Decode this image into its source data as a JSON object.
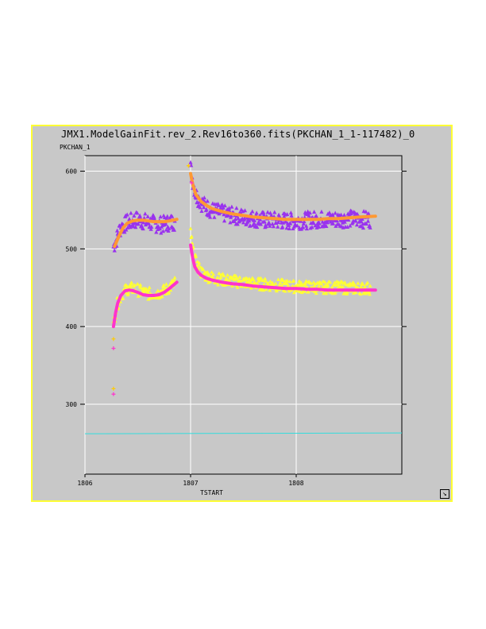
{
  "window": {
    "title": "JMX1.ModelGainFit.rev_2.Rev16to360.fits(PKCHAN_1_1-117482)_0"
  },
  "colors": {
    "background": "#c8c8c8",
    "frame": "#ffff33",
    "grid": "#ffffff",
    "triangles": "#9933ee",
    "fit_orange": "#ff9933",
    "fit_magenta": "#ff33cc",
    "points_yellow": "#ffff33",
    "baseline": "#33dddd"
  },
  "icons": {
    "resize": "resize-corner-icon"
  },
  "chart_data": {
    "type": "scatter",
    "xlabel": "TSTART",
    "ylabel": "PKCHAN_1",
    "xlim": [
      1806.0,
      1809.0
    ],
    "ylim": [
      210,
      620
    ],
    "x_ticks": [
      "1806",
      "1807",
      "1808"
    ],
    "y_ticks": [
      "300",
      "400",
      "500",
      "600"
    ],
    "grid": true,
    "series": [
      {
        "kind": "triangles",
        "color": "#9933ee",
        "segments": [
          {
            "x": [
              1806.27,
              1806.3,
              1806.33,
              1806.36,
              1806.4,
              1806.45,
              1806.5,
              1806.55,
              1806.6,
              1806.65,
              1806.7,
              1806.75,
              1806.8,
              1806.85
            ],
            "y": [
              505,
              515,
              528,
              532,
              536,
              538,
              540,
              538,
              536,
              535,
              533,
              534,
              536,
              537
            ]
          },
          {
            "x": [
              1807.0,
              1807.02,
              1807.05,
              1807.1,
              1807.15,
              1807.2,
              1807.3,
              1807.4,
              1807.5,
              1807.6,
              1807.7,
              1807.8,
              1807.9,
              1808.0,
              1808.1,
              1808.2,
              1808.3,
              1808.4,
              1808.5,
              1808.6,
              1808.7
            ],
            "y": [
              606,
              590,
              572,
              562,
              556,
              552,
              548,
              545,
              543,
              541,
              539,
              539,
              538,
              538,
              539,
              540,
              540,
              540,
              541,
              540,
              540
            ]
          }
        ]
      },
      {
        "kind": "yellow-crosses",
        "color": "#ffff33",
        "segments": [
          {
            "x": [
              1806.27,
              1806.3,
              1806.35,
              1806.4,
              1806.45,
              1806.5,
              1806.55,
              1806.6,
              1806.65,
              1806.7,
              1806.75,
              1806.8,
              1806.85
            ],
            "y": [
              400,
              425,
              440,
              446,
              447,
              445,
              442,
              440,
              440,
              441,
              444,
              448,
              454
            ]
          },
          {
            "x": [
              1807.0,
              1807.02,
              1807.05,
              1807.1,
              1807.15,
              1807.2,
              1807.3,
              1807.4,
              1807.5,
              1807.6,
              1807.7,
              1807.8,
              1807.9,
              1808.0,
              1808.1,
              1808.2,
              1808.3,
              1808.4,
              1808.5,
              1808.6,
              1808.7
            ],
            "y": [
              520,
              495,
              480,
              468,
              463,
              461,
              458,
              456,
              455,
              453,
              452,
              451,
              450,
              449,
              449,
              448,
              448,
              448,
              447,
              447,
              447
            ]
          }
        ]
      },
      {
        "kind": "orange-fit",
        "color": "#ff9933",
        "segments": [
          {
            "x": [
              1806.28,
              1806.32,
              1806.36,
              1806.4,
              1806.45,
              1806.5,
              1806.55,
              1806.6,
              1806.65,
              1806.7,
              1806.75,
              1806.8,
              1806.87
            ],
            "y": [
              503,
              516,
              527,
              533,
              536,
              537,
              537,
              536,
              535,
              535,
              535,
              536,
              538
            ]
          },
          {
            "x": [
              1807.0,
              1807.02,
              1807.05,
              1807.1,
              1807.15,
              1807.2,
              1807.3,
              1807.4,
              1807.5,
              1807.6,
              1807.7,
              1807.8,
              1807.9,
              1808.0,
              1808.1,
              1808.2,
              1808.3,
              1808.4,
              1808.5,
              1808.6,
              1808.75
            ],
            "y": [
              597,
              583,
              570,
              561,
              556,
              552,
              548,
              545,
              543,
              541,
              540,
              539,
              538,
              538,
              538,
              538,
              539,
              539,
              540,
              541,
              542
            ]
          }
        ]
      },
      {
        "kind": "magenta-fit",
        "color": "#ff33cc",
        "segments": [
          {
            "x": [
              1806.27,
              1806.29,
              1806.31,
              1806.34,
              1806.38,
              1806.42,
              1806.46,
              1806.5,
              1806.55,
              1806.6,
              1806.65,
              1806.7,
              1806.75,
              1806.8,
              1806.87
            ],
            "y": [
              400,
              418,
              430,
              440,
              446,
              447,
              446,
              444,
              441,
              440,
              440,
              441,
              444,
              449,
              457
            ]
          },
          {
            "x": [
              1807.0,
              1807.02,
              1807.04,
              1807.07,
              1807.1,
              1807.15,
              1807.2,
              1807.3,
              1807.4,
              1807.5,
              1807.6,
              1807.7,
              1807.8,
              1807.9,
              1808.0,
              1808.1,
              1808.2,
              1808.3,
              1808.4,
              1808.5,
              1808.6,
              1808.75
            ],
            "y": [
              505,
              488,
              477,
              470,
              466,
              462,
              460,
              457,
              455,
              454,
              452,
              451,
              450,
              449,
              449,
              448,
              448,
              447,
              447,
              447,
              447,
              447
            ]
          }
        ]
      },
      {
        "kind": "outliers",
        "x": [
          1806.27,
          1806.27,
          1806.27,
          1806.27,
          1806.98,
          1807.01
        ],
        "y": [
          384,
          372,
          320,
          313,
          607,
          585
        ]
      },
      {
        "kind": "baseline",
        "color": "#33dddd",
        "x": [
          1806.0,
          1809.0
        ],
        "y": [
          262,
          263
        ]
      }
    ]
  }
}
